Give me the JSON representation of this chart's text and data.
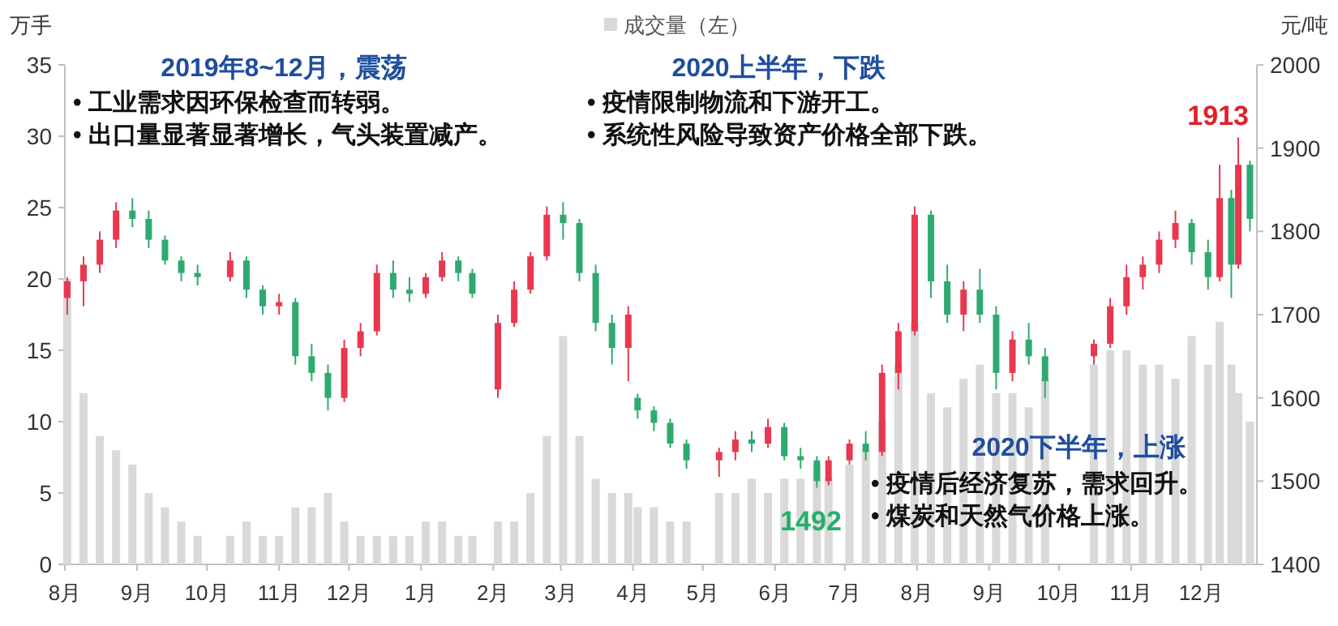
{
  "chart_data": {
    "type": "candlestick",
    "ylabel": "万手",
    "y2label": "元/吨",
    "legend": "top",
    "x": [
      "2019-08-02",
      "2019-08-09",
      "2019-08-16",
      "2019-08-23",
      "2019-08-30",
      "2019-09-06",
      "2019-09-13",
      "2019-09-20",
      "2019-09-27",
      "2019-10-11",
      "2019-10-18",
      "2019-10-25",
      "2019-11-01",
      "2019-11-08",
      "2019-11-15",
      "2019-11-22",
      "2019-11-29",
      "2019-12-06",
      "2019-12-13",
      "2019-12-20",
      "2019-12-27",
      "2020-01-03",
      "2020-01-10",
      "2020-01-17",
      "2020-01-23",
      "2020-02-03",
      "2020-02-10",
      "2020-02-17",
      "2020-02-24",
      "2020-03-02",
      "2020-03-09",
      "2020-03-16",
      "2020-03-23",
      "2020-03-30",
      "2020-04-03",
      "2020-04-10",
      "2020-04-17",
      "2020-04-24",
      "2020-05-08",
      "2020-05-15",
      "2020-05-22",
      "2020-05-29",
      "2020-06-05",
      "2020-06-12",
      "2020-06-19",
      "2020-06-24",
      "2020-07-03",
      "2020-07-10",
      "2020-07-17",
      "2020-07-24",
      "2020-07-31",
      "2020-08-07",
      "2020-08-14",
      "2020-08-21",
      "2020-08-28",
      "2020-09-04",
      "2020-09-11",
      "2020-09-18",
      "2020-09-25",
      "2020-10-16",
      "2020-10-23",
      "2020-10-30",
      "2020-11-06",
      "2020-11-13",
      "2020-11-20",
      "2020-11-27",
      "2020-12-04",
      "2020-12-09",
      "2020-12-14",
      "2020-12-17",
      "2020-12-22"
    ],
    "xlim": [
      "2019-08-01",
      "2020-12-25"
    ],
    "xticks": [
      {
        "value": "2019-08-01",
        "label": "8月"
      },
      {
        "value": "2019-09-01",
        "label": "9月"
      },
      {
        "value": "2019-10-01",
        "label": "10月"
      },
      {
        "value": "2019-11-01",
        "label": "11月"
      },
      {
        "value": "2019-12-01",
        "label": "12月"
      },
      {
        "value": "2020-01-01",
        "label": "1月"
      },
      {
        "value": "2020-02-01",
        "label": "2月"
      },
      {
        "value": "2020-03-01",
        "label": "3月"
      },
      {
        "value": "2020-04-01",
        "label": "4月"
      },
      {
        "value": "2020-05-01",
        "label": "5月"
      },
      {
        "value": "2020-06-01",
        "label": "6月"
      },
      {
        "value": "2020-07-01",
        "label": "7月"
      },
      {
        "value": "2020-08-01",
        "label": "8月"
      },
      {
        "value": "2020-09-01",
        "label": "9月"
      },
      {
        "value": "2020-10-01",
        "label": "10月"
      },
      {
        "value": "2020-11-01",
        "label": "11月"
      },
      {
        "value": "2020-12-01",
        "label": "12月"
      }
    ],
    "ylim": [
      0,
      35
    ],
    "yticks": [
      0,
      5,
      10,
      15,
      20,
      25,
      30,
      35
    ],
    "y2lim": [
      1400,
      2000
    ],
    "y2ticks": [
      1400,
      1500,
      1600,
      1700,
      1800,
      1900,
      2000
    ],
    "series": [
      {
        "name": "成交量（左）",
        "type": "bar",
        "color": "#d9d9d9",
        "values": [
          20,
          12,
          9,
          8,
          7,
          5,
          4,
          3,
          2,
          2,
          3,
          2,
          2,
          4,
          4,
          5,
          3,
          2,
          2,
          2,
          2,
          3,
          3,
          2,
          2,
          3,
          3,
          5,
          9,
          16,
          9,
          6,
          5,
          5,
          4,
          4,
          3,
          3,
          5,
          5,
          6,
          5,
          6,
          6,
          7,
          6,
          7,
          8,
          10,
          14,
          17,
          12,
          11,
          13,
          14,
          12,
          12,
          11,
          13,
          14,
          15,
          15,
          14,
          14,
          13,
          16,
          14,
          17,
          14,
          12,
          10
        ]
      },
      {
        "axis": "y2",
        "ohlc": [
          [
            1720,
            1745,
            1700,
            1740
          ],
          [
            1740,
            1770,
            1710,
            1760
          ],
          [
            1760,
            1800,
            1750,
            1790
          ],
          [
            1790,
            1835,
            1780,
            1825
          ],
          [
            1825,
            1840,
            1805,
            1815
          ],
          [
            1815,
            1825,
            1780,
            1790
          ],
          [
            1790,
            1795,
            1760,
            1765
          ],
          [
            1765,
            1770,
            1740,
            1750
          ],
          [
            1750,
            1760,
            1735,
            1745
          ],
          [
            1745,
            1775,
            1740,
            1765
          ],
          [
            1765,
            1770,
            1720,
            1730
          ],
          [
            1730,
            1735,
            1700,
            1710
          ],
          [
            1710,
            1725,
            1700,
            1715
          ],
          [
            1715,
            1720,
            1640,
            1650
          ],
          [
            1650,
            1665,
            1620,
            1630
          ],
          [
            1630,
            1640,
            1585,
            1600
          ],
          [
            1600,
            1670,
            1595,
            1660
          ],
          [
            1660,
            1690,
            1650,
            1680
          ],
          [
            1680,
            1760,
            1675,
            1750
          ],
          [
            1750,
            1765,
            1720,
            1730
          ],
          [
            1730,
            1745,
            1715,
            1725
          ],
          [
            1725,
            1750,
            1720,
            1745
          ],
          [
            1745,
            1775,
            1740,
            1765
          ],
          [
            1765,
            1770,
            1740,
            1750
          ],
          [
            1750,
            1755,
            1720,
            1725
          ],
          [
            1610,
            1700,
            1600,
            1690
          ],
          [
            1690,
            1740,
            1685,
            1730
          ],
          [
            1730,
            1775,
            1725,
            1770
          ],
          [
            1770,
            1830,
            1765,
            1820
          ],
          [
            1820,
            1835,
            1790,
            1810
          ],
          [
            1810,
            1815,
            1740,
            1750
          ],
          [
            1750,
            1760,
            1680,
            1690
          ],
          [
            1690,
            1700,
            1640,
            1660
          ],
          [
            1660,
            1710,
            1620,
            1700
          ],
          [
            1600,
            1605,
            1575,
            1585
          ],
          [
            1585,
            1590,
            1560,
            1570
          ],
          [
            1570,
            1575,
            1540,
            1545
          ],
          [
            1545,
            1550,
            1515,
            1525
          ],
          [
            1525,
            1540,
            1505,
            1535
          ],
          [
            1535,
            1560,
            1525,
            1550
          ],
          [
            1550,
            1560,
            1535,
            1545
          ],
          [
            1545,
            1575,
            1540,
            1565
          ],
          [
            1565,
            1570,
            1525,
            1530
          ],
          [
            1530,
            1540,
            1515,
            1525
          ],
          [
            1525,
            1530,
            1492,
            1500
          ],
          [
            1500,
            1530,
            1495,
            1525
          ],
          [
            1525,
            1550,
            1520,
            1545
          ],
          [
            1545,
            1560,
            1525,
            1535
          ],
          [
            1535,
            1640,
            1530,
            1630
          ],
          [
            1630,
            1690,
            1610,
            1680
          ],
          [
            1680,
            1830,
            1675,
            1820
          ],
          [
            1820,
            1825,
            1720,
            1740
          ],
          [
            1740,
            1760,
            1690,
            1700
          ],
          [
            1700,
            1740,
            1680,
            1730
          ],
          [
            1730,
            1755,
            1690,
            1700
          ],
          [
            1700,
            1710,
            1610,
            1630
          ],
          [
            1630,
            1680,
            1620,
            1670
          ],
          [
            1670,
            1690,
            1640,
            1650
          ],
          [
            1650,
            1660,
            1600,
            1620
          ],
          [
            1650,
            1670,
            1640,
            1665
          ],
          [
            1665,
            1720,
            1660,
            1710
          ],
          [
            1710,
            1760,
            1700,
            1745
          ],
          [
            1745,
            1770,
            1730,
            1760
          ],
          [
            1760,
            1800,
            1750,
            1790
          ],
          [
            1790,
            1825,
            1780,
            1810
          ],
          [
            1810,
            1815,
            1760,
            1775
          ],
          [
            1775,
            1790,
            1730,
            1745
          ],
          [
            1745,
            1880,
            1740,
            1840
          ],
          [
            1840,
            1850,
            1720,
            1760
          ],
          [
            1760,
            1913,
            1755,
            1880
          ],
          [
            1880,
            1885,
            1800,
            1815
          ]
        ],
        "colors": [
          "#e8384f",
          "#e8384f",
          "#e8384f",
          "#e8384f",
          "#2eaa6f",
          "#2eaa6f",
          "#2eaa6f",
          "#2eaa6f",
          "#2eaa6f",
          "#e8384f",
          "#2eaa6f",
          "#2eaa6f",
          "#e8384f",
          "#2eaa6f",
          "#2eaa6f",
          "#2eaa6f",
          "#e8384f",
          "#e8384f",
          "#e8384f",
          "#2eaa6f",
          "#2eaa6f",
          "#e8384f",
          "#e8384f",
          "#2eaa6f",
          "#2eaa6f",
          "#e8384f",
          "#e8384f",
          "#e8384f",
          "#e8384f",
          "#2eaa6f",
          "#2eaa6f",
          "#2eaa6f",
          "#2eaa6f",
          "#e8384f",
          "#2eaa6f",
          "#2eaa6f",
          "#2eaa6f",
          "#2eaa6f",
          "#e8384f",
          "#e8384f",
          "#2eaa6f",
          "#e8384f",
          "#2eaa6f",
          "#2eaa6f",
          "#2eaa6f",
          "#e8384f",
          "#e8384f",
          "#2eaa6f",
          "#e8384f",
          "#e8384f",
          "#e8384f",
          "#2eaa6f",
          "#2eaa6f",
          "#e8384f",
          "#2eaa6f",
          "#2eaa6f",
          "#e8384f",
          "#2eaa6f",
          "#2eaa6f",
          "#e8384f",
          "#e8384f",
          "#e8384f",
          "#e8384f",
          "#e8384f",
          "#e8384f",
          "#2eaa6f",
          "#2eaa6f",
          "#e8384f",
          "#2eaa6f",
          "#e8384f",
          "#2eaa6f"
        ]
      }
    ],
    "annotations": [
      "2019年8~12月，震荡",
      "• 工业需求因环保检查而转弱。",
      "• 出口量显著显著增长，气头装置减产。",
      "2020上半年，下跌",
      "• 疫情限制物流和下游开工。",
      "• 系统性风险导致资产价格全部下跌。",
      "2020下半年，上涨",
      "• 疫情后经济复苏，需求回升。",
      "• 煤炭和天然气价格上涨。",
      "1913",
      "1492"
    ]
  }
}
